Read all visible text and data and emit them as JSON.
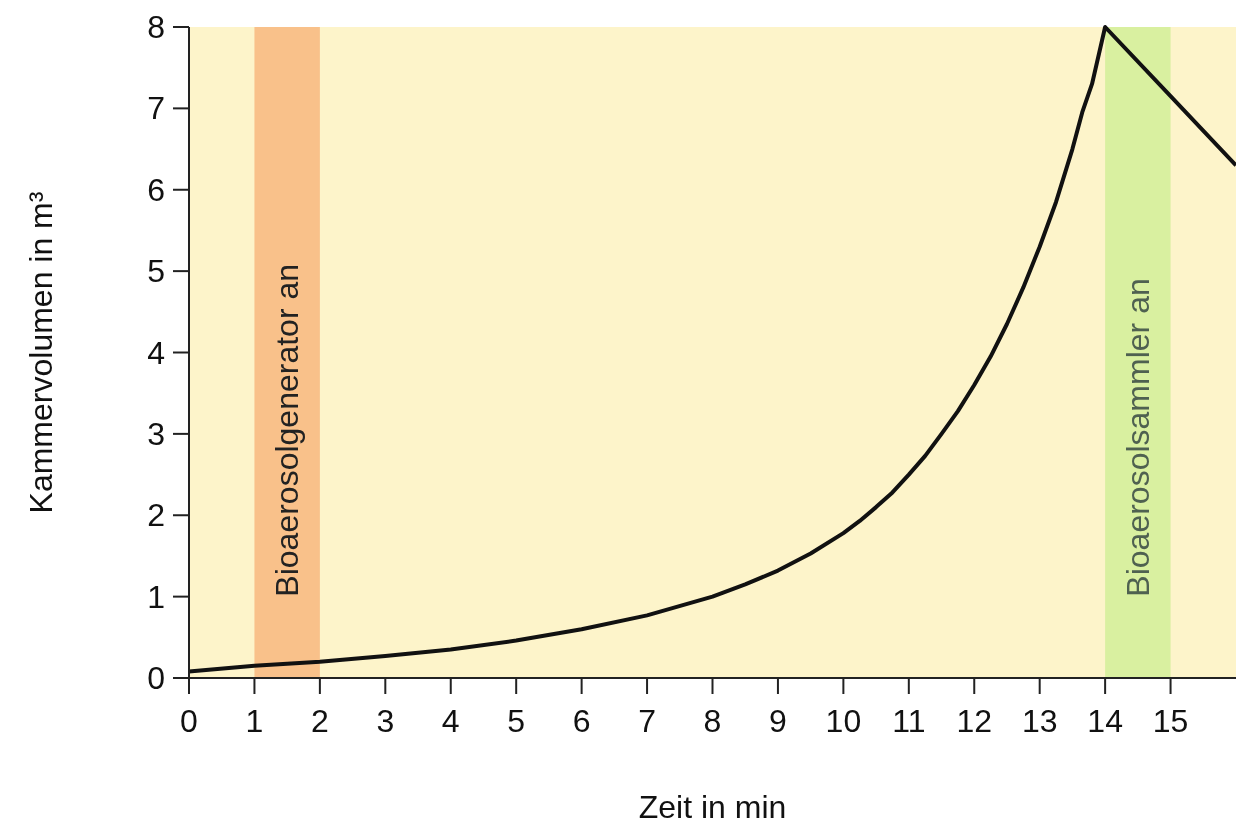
{
  "chart_data": {
    "type": "line",
    "xlabel": "Zeit in min",
    "ylabel": "Kammervolumen in m³",
    "xlim": [
      0,
      16
    ],
    "ylim": [
      0,
      8
    ],
    "xticks": [
      0,
      1,
      2,
      3,
      4,
      5,
      6,
      7,
      8,
      9,
      10,
      11,
      12,
      13,
      14,
      15
    ],
    "yticks": [
      0,
      1,
      2,
      3,
      4,
      5,
      6,
      7,
      8
    ],
    "grid": false,
    "marker": "none",
    "line_style": "solid",
    "series": [
      {
        "color": "#111111",
        "x": [
          0,
          1,
          2,
          3,
          4,
          5,
          6,
          7,
          8,
          8.5,
          9,
          9.5,
          10,
          10.25,
          10.5,
          10.75,
          11,
          11.25,
          11.5,
          11.75,
          12,
          12.25,
          12.5,
          12.75,
          13,
          13.25,
          13.5,
          13.65,
          13.8,
          13.9,
          14,
          15,
          16
        ],
        "values": [
          0.08,
          0.15,
          0.2,
          0.27,
          0.35,
          0.46,
          0.6,
          0.77,
          1.0,
          1.15,
          1.32,
          1.53,
          1.78,
          1.93,
          2.1,
          2.28,
          2.5,
          2.73,
          3.0,
          3.28,
          3.6,
          3.95,
          4.35,
          4.8,
          5.3,
          5.85,
          6.5,
          6.95,
          7.3,
          7.65,
          8.0,
          7.15,
          6.3
        ]
      }
    ],
    "bands": [
      {
        "axis": "x",
        "from": 1,
        "to": 2,
        "label": "Bioaerosolgenerator an",
        "color": "#f9c18a"
      },
      {
        "axis": "x",
        "from": 14,
        "to": 15,
        "label": "Bioaerosolsammler an",
        "color": "#d9f0a0"
      }
    ]
  }
}
